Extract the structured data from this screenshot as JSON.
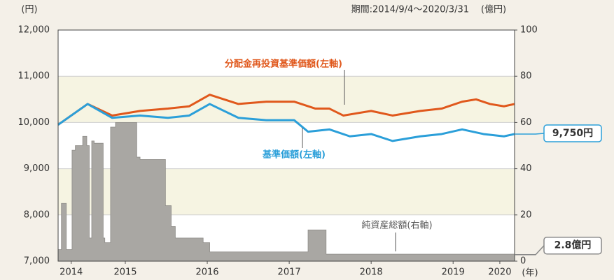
{
  "chart_data": {
    "type": "line",
    "left_unit": "(円)",
    "right_unit": "(億円)",
    "x_unit": "(年)",
    "period": "期間:2014/9/4～2020/3/31",
    "xlim": [
      2014.68,
      2020.25
    ],
    "xticks": [
      {
        "value": 2014.84,
        "label": "2014"
      },
      {
        "value": 2015.5,
        "label": "2015"
      },
      {
        "value": 2016.5,
        "label": "2016"
      },
      {
        "value": 2017.5,
        "label": "2017"
      },
      {
        "value": 2018.5,
        "label": "2018"
      },
      {
        "value": 2019.5,
        "label": "2019"
      },
      {
        "value": 2020.07,
        "label": "2020"
      }
    ],
    "ylim": [
      7000,
      12000
    ],
    "yticks": [
      {
        "value": 7000,
        "label": "7,000"
      },
      {
        "value": 8000,
        "label": "8,000"
      },
      {
        "value": 9000,
        "label": "9,000"
      },
      {
        "value": 10000,
        "label": "10,000"
      },
      {
        "value": 11000,
        "label": "11,000"
      },
      {
        "value": 12000,
        "label": "12,000"
      }
    ],
    "y2lim": [
      0,
      100
    ],
    "y2ticks": [
      0,
      20,
      40,
      60,
      80,
      100
    ],
    "grid": true,
    "bands": true,
    "series": [
      {
        "name": "分配金再投資基準価額(左軸)",
        "color": "#e0581c",
        "x": [
          2014.68,
          2015.04,
          2015.34,
          2015.68,
          2016.02,
          2016.28,
          2016.53,
          2016.88,
          2017.22,
          2017.56,
          2017.82,
          2017.99,
          2018.16,
          2018.5,
          2018.76,
          2019.1,
          2019.36,
          2019.61,
          2019.78,
          2019.95,
          2020.12,
          2020.25
        ],
        "values": [
          9950,
          10400,
          10150,
          10250,
          10300,
          10350,
          10600,
          10400,
          10450,
          10450,
          10300,
          10300,
          10150,
          10250,
          10150,
          10250,
          10300,
          10450,
          10500,
          10400,
          10350,
          10400
        ]
      },
      {
        "name": "基準価額(左軸)",
        "color": "#2b9fd9",
        "x": [
          2014.68,
          2015.04,
          2015.34,
          2015.68,
          2016.02,
          2016.28,
          2016.53,
          2016.88,
          2017.22,
          2017.56,
          2017.73,
          2017.99,
          2018.24,
          2018.5,
          2018.76,
          2019.1,
          2019.36,
          2019.61,
          2019.87,
          2020.12,
          2020.25
        ],
        "values": [
          9950,
          10400,
          10100,
          10150,
          10100,
          10150,
          10400,
          10100,
          10050,
          10050,
          9800,
          9850,
          9700,
          9750,
          9600,
          9700,
          9750,
          9850,
          9750,
          9700,
          9750
        ]
      },
      {
        "name": "純資産総額(右軸)",
        "color": "#a9a7a3",
        "axis": "y2",
        "step": true,
        "x": [
          2014.68,
          2014.72,
          2014.78,
          2014.85,
          2014.89,
          2014.98,
          2015.03,
          2015.06,
          2015.09,
          2015.12,
          2015.23,
          2015.25,
          2015.32,
          2015.38,
          2015.64,
          2015.68,
          2015.99,
          2016.06,
          2016.11,
          2016.45,
          2016.53,
          2017.73,
          2017.95
        ],
        "values": [
          5,
          25,
          5,
          48,
          50,
          54,
          50,
          10,
          52,
          51,
          10,
          8,
          58,
          60,
          45,
          44,
          24,
          15,
          10,
          8,
          4,
          13.5,
          3
        ]
      }
    ],
    "callouts": [
      {
        "label": "9,750円",
        "value": 9750,
        "axis": "y",
        "color": "#2b9fd9"
      },
      {
        "label": "2.8億円",
        "value": 2.8,
        "axis": "y2",
        "color": "#888888"
      }
    ]
  }
}
